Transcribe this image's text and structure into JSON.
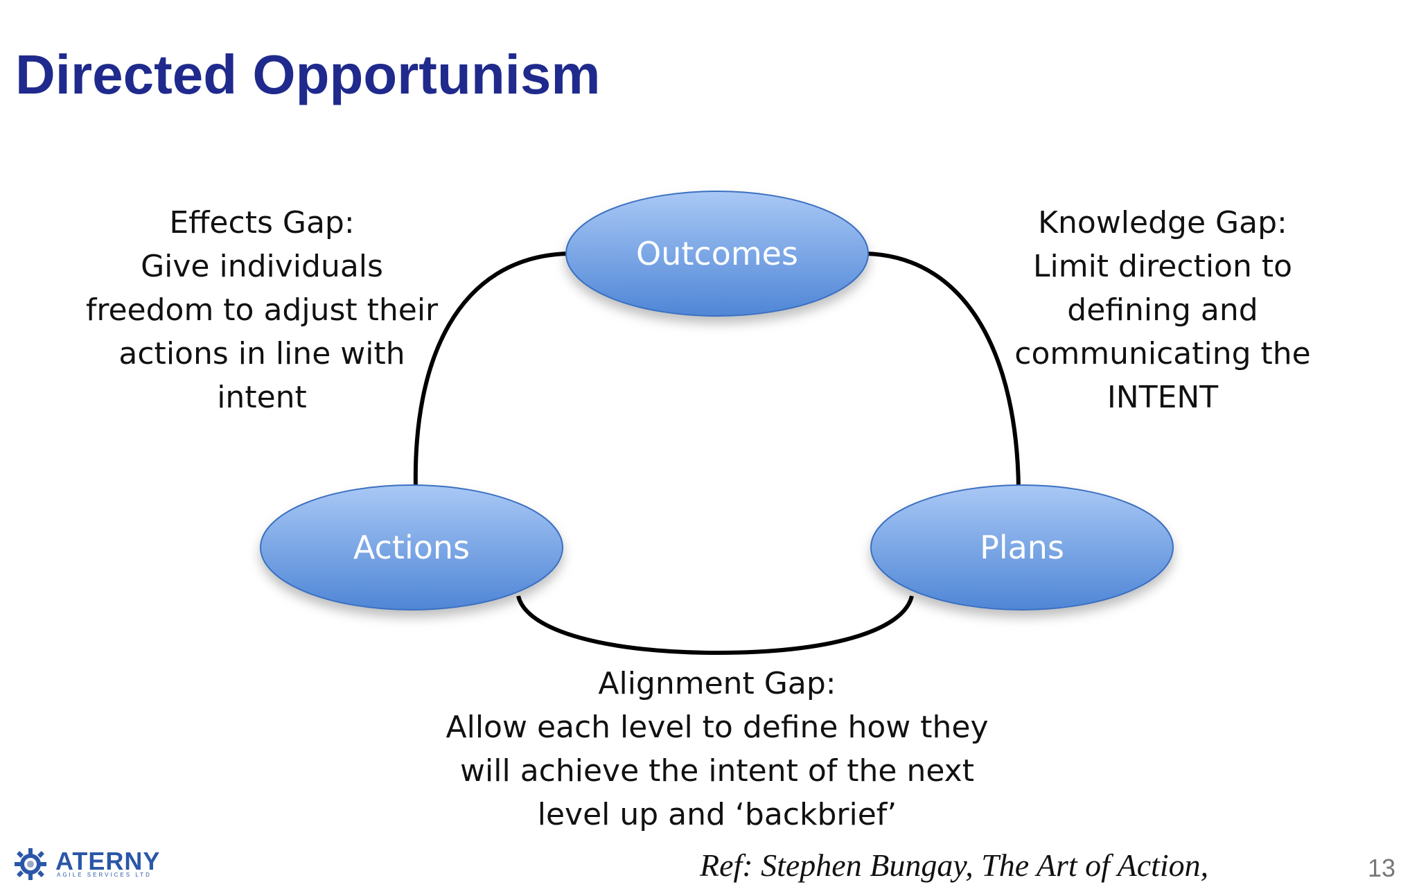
{
  "slide": {
    "title": "Directed Opportunism",
    "page_number": "13",
    "reference": "Ref: Stephen Bungay, The Art of Action,"
  },
  "logo": {
    "name": "ATERNY",
    "subtitle": "AGILE SERVICES LTD"
  },
  "nodes": {
    "outcomes": "Outcomes",
    "actions": "Actions",
    "plans": "Plans"
  },
  "gaps": {
    "effects": {
      "lines": [
        "Effects Gap:",
        "Give individuals",
        "freedom to adjust their",
        "actions in line with",
        "intent"
      ]
    },
    "knowledge": {
      "lines": [
        "Knowledge Gap:",
        "Limit direction to",
        "defining and",
        "communicating the",
        "INTENT"
      ]
    },
    "alignment": {
      "lines": [
        "Alignment Gap:",
        "Allow each level to define how they",
        "will achieve the intent of the next",
        "level up and ‘backbrief’"
      ]
    }
  },
  "colors": {
    "title": "#1f2a8c",
    "node_fill_top": "#a9c8f5",
    "node_fill_bottom": "#4f86d6",
    "node_stroke": "#3a6fc0",
    "connector": "#000000"
  }
}
